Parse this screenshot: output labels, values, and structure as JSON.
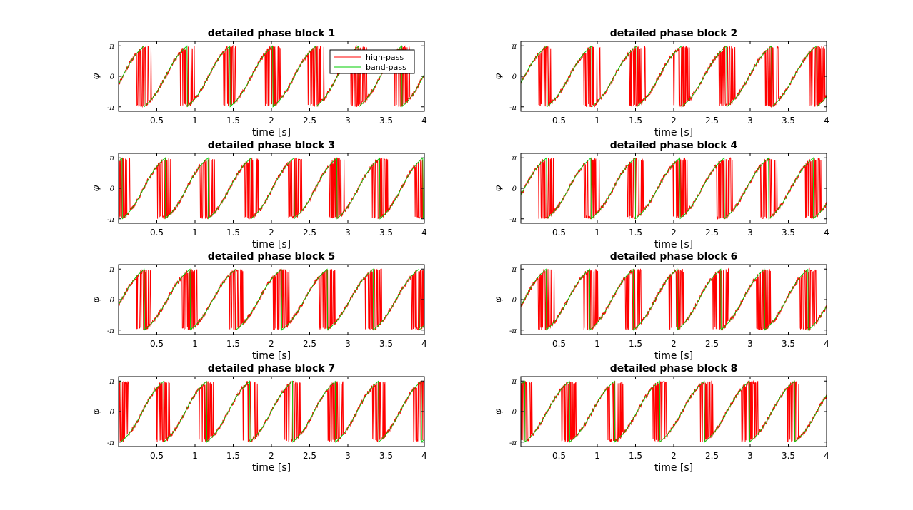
{
  "chart_data": {
    "type": "line",
    "layout": "4x2 grid of subplots",
    "x_range": [
      0,
      4
    ],
    "y_range": [
      -3.6,
      3.6
    ],
    "x_ticks": [
      0.5,
      1,
      1.5,
      2,
      2.5,
      3,
      3.5,
      4
    ],
    "x_tick_labels": [
      "0.5",
      "1",
      "1.5",
      "2",
      "2.5",
      "3",
      "3.5",
      "4"
    ],
    "y_ticks": [
      -3.14159,
      0,
      3.14159
    ],
    "y_tick_labels": [
      "-π",
      "0",
      "π"
    ],
    "xlabel": "time [s]",
    "ylabel": "φ",
    "grid": false,
    "colors": {
      "high_pass": "#ff0000",
      "band_pass": "#00cc00"
    },
    "legend": {
      "placement": "top-right",
      "in_panel": 1,
      "entries": [
        "high-pass",
        "band-pass"
      ]
    },
    "series_names": [
      "high-pass",
      "band-pass"
    ],
    "series_description": "Wrapped phase in [-π, π]; band-pass phase is a smooth sawtooth (~1.7 Hz), high-pass phase follows it with noise and dense phase-wrap jumps near ±π.",
    "panels": [
      {
        "title": "detailed phase block 1",
        "freq": 1.78,
        "phase0": -0.6,
        "seed": 11
      },
      {
        "title": "detailed phase block 2",
        "freq": 1.7,
        "phase0": -0.5,
        "seed": 23
      },
      {
        "title": "detailed phase block 3",
        "freq": 1.78,
        "phase0": 2.6,
        "seed": 37
      },
      {
        "title": "detailed phase block 4",
        "freq": 1.72,
        "phase0": -0.5,
        "seed": 41
      },
      {
        "title": "detailed phase block 5",
        "freq": 1.67,
        "phase0": -0.4,
        "seed": 53
      },
      {
        "title": "detailed phase block 6",
        "freq": 1.75,
        "phase0": -0.5,
        "seed": 67
      },
      {
        "title": "detailed phase block 7",
        "freq": 1.78,
        "phase0": 2.8,
        "seed": 71
      },
      {
        "title": "detailed phase block 8",
        "freq": 1.7,
        "phase0": 2.6,
        "seed": 89
      }
    ]
  }
}
